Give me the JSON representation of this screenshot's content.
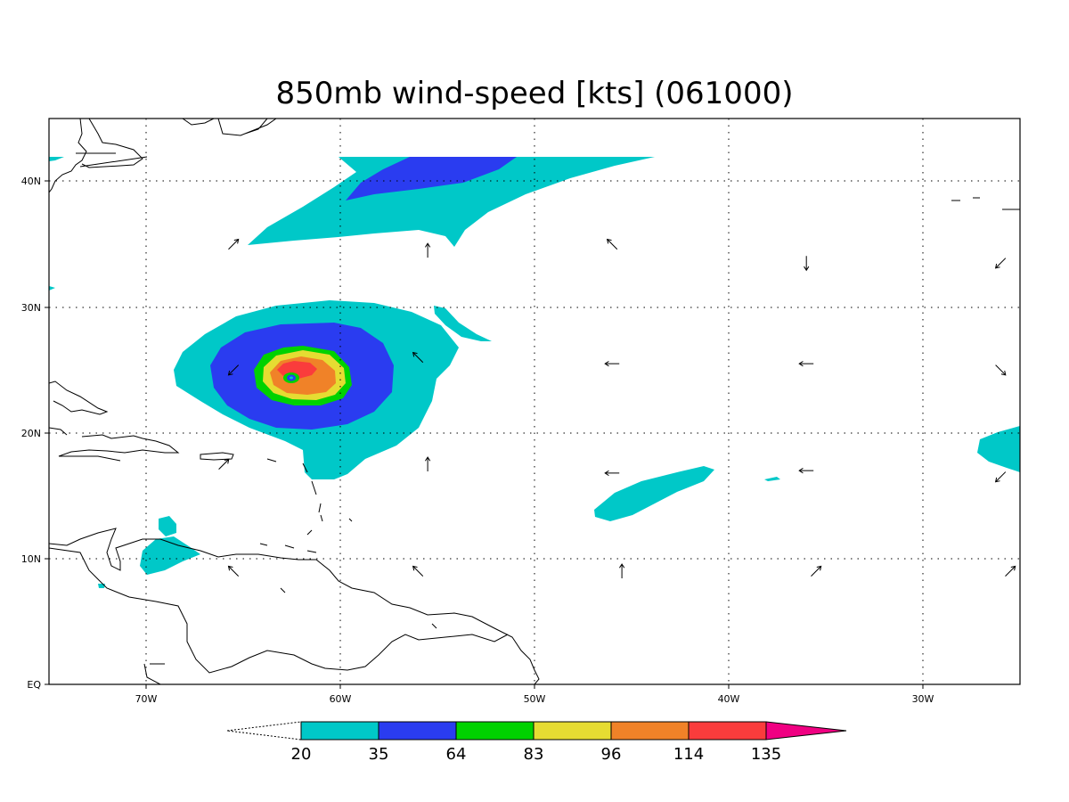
{
  "title": "850mb wind-speed [kts] (061000)",
  "colors": {
    "c20": "#00c8c8",
    "c35": "#2a3cf0",
    "c64": "#00d200",
    "c83": "#e6dc32",
    "c96": "#f08228",
    "c114": "#fa3c3c",
    "c135": "#f00082"
  },
  "axes": {
    "x_ticks": [
      "70W",
      "60W",
      "50W",
      "40W",
      "30W"
    ],
    "y_ticks": [
      "EQ",
      "10N",
      "20N",
      "30N",
      "40N"
    ],
    "lon_range": [
      -75,
      -25
    ],
    "lat_range": [
      0,
      45
    ]
  },
  "legend": {
    "labels": [
      "20",
      "35",
      "64",
      "83",
      "96",
      "114",
      "135"
    ]
  },
  "wind_vectors": [
    {
      "lon": -65.5,
      "lat": 35.0,
      "dir": "NE"
    },
    {
      "lon": -55.5,
      "lat": 34.5,
      "dir": "N"
    },
    {
      "lon": -46.0,
      "lat": 35.0,
      "dir": "NW"
    },
    {
      "lon": -36.0,
      "lat": 33.5,
      "dir": "S"
    },
    {
      "lon": -26.0,
      "lat": 33.5,
      "dir": "SW"
    },
    {
      "lon": -65.5,
      "lat": 25.0,
      "dir": "SW"
    },
    {
      "lon": -56.0,
      "lat": 26.0,
      "dir": "NW"
    },
    {
      "lon": -46.0,
      "lat": 25.5,
      "dir": "W"
    },
    {
      "lon": -36.0,
      "lat": 25.5,
      "dir": "W"
    },
    {
      "lon": -26.0,
      "lat": 25.0,
      "dir": "SE"
    },
    {
      "lon": -66.0,
      "lat": 17.5,
      "dir": "NE"
    },
    {
      "lon": -55.5,
      "lat": 17.5,
      "dir": "N"
    },
    {
      "lon": -46.0,
      "lat": 16.8,
      "dir": "W"
    },
    {
      "lon": -36.0,
      "lat": 17.0,
      "dir": "W"
    },
    {
      "lon": -26.0,
      "lat": 16.5,
      "dir": "SW"
    },
    {
      "lon": -65.5,
      "lat": 9.0,
      "dir": "NW"
    },
    {
      "lon": -56.0,
      "lat": 9.0,
      "dir": "NW"
    },
    {
      "lon": -45.5,
      "lat": 9.0,
      "dir": "N"
    },
    {
      "lon": -35.5,
      "lat": 9.0,
      "dir": "NE"
    },
    {
      "lon": -25.5,
      "lat": 9.0,
      "dir": "NE"
    }
  ]
}
